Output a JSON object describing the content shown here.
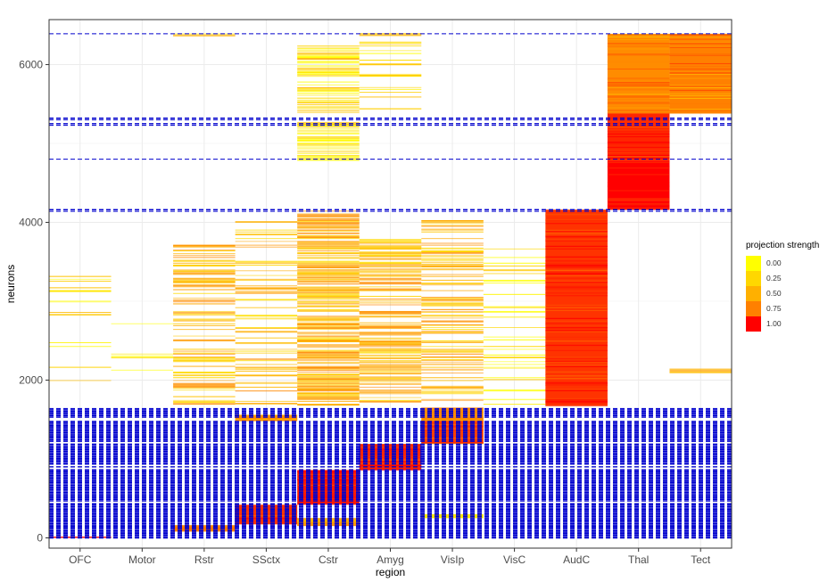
{
  "chart_data": {
    "type": "heatmap",
    "title": "",
    "xlabel": "region",
    "ylabel": "neurons",
    "categories": [
      "OFC",
      "Motor",
      "Rstr",
      "SSctx",
      "Cstr",
      "Amyg",
      "VisIp",
      "VisC",
      "AudC",
      "Thal",
      "Tect"
    ],
    "ylim": [
      -130,
      6570
    ],
    "yticks": [
      0,
      2000,
      4000,
      6000
    ],
    "grid": true,
    "legend": {
      "title": "projection strength",
      "position": "right",
      "labels": [
        "0.00",
        "0.25",
        "0.50",
        "0.75",
        "1.00"
      ],
      "colors": [
        "#ffff00",
        "#ffd700",
        "#ffb000",
        "#ff8000",
        "#ff0000"
      ]
    },
    "color_scale": {
      "low": "#ffff00",
      "high": "#ff0000",
      "min": 0,
      "max": 1
    },
    "blocks": [
      {
        "region": "OFC",
        "y0": 0,
        "y1": 15,
        "strength": 1.0
      },
      {
        "region": "Rstr",
        "y0": 80,
        "y1": 160,
        "strength": 0.5
      },
      {
        "region": "SSctx",
        "y0": 180,
        "y1": 420,
        "strength": 0.8
      },
      {
        "region": "Cstr",
        "y0": 420,
        "y1": 860,
        "strength": 0.9
      },
      {
        "region": "Cstr",
        "y0": 150,
        "y1": 250,
        "strength": 0.3
      },
      {
        "region": "Amyg",
        "y0": 860,
        "y1": 1190,
        "strength": 0.85
      },
      {
        "region": "VisIp",
        "y0": 1190,
        "y1": 1490,
        "strength": 0.75
      },
      {
        "region": "VisIp",
        "y0": 1490,
        "y1": 1650,
        "strength": 0.45
      },
      {
        "region": "VisIp",
        "y0": 250,
        "y1": 300,
        "strength": 0.1
      },
      {
        "region": "SSctx",
        "y0": 1480,
        "y1": 1560,
        "strength": 0.45
      },
      {
        "region": "AudC",
        "y0": 1670,
        "y1": 4160,
        "strength": 0.8
      },
      {
        "region": "Thal",
        "y0": 4160,
        "y1": 4780,
        "strength": 1.0
      },
      {
        "region": "Thal",
        "y0": 4780,
        "y1": 5380,
        "strength": 0.85
      },
      {
        "region": "Thal",
        "y0": 5380,
        "y1": 6390,
        "strength": 0.45
      },
      {
        "region": "Tect",
        "y0": 5380,
        "y1": 6390,
        "strength": 0.5
      }
    ],
    "sparse_lines": [
      {
        "region": "OFC",
        "y0": 2000,
        "y1": 3700,
        "density": 0.12,
        "strength": 0.1
      },
      {
        "region": "Motor",
        "y0": 2000,
        "y1": 3400,
        "density": 0.06,
        "strength": 0.05
      },
      {
        "region": "Rstr",
        "y0": 1700,
        "y1": 3750,
        "density": 0.45,
        "strength": 0.3
      },
      {
        "region": "Rstr",
        "y0": 6370,
        "y1": 6400,
        "density": 1.0,
        "strength": 0.3
      },
      {
        "region": "SSctx",
        "y0": 1700,
        "y1": 4030,
        "density": 0.3,
        "strength": 0.3
      },
      {
        "region": "Cstr",
        "y0": 1700,
        "y1": 4160,
        "density": 0.75,
        "strength": 0.3
      },
      {
        "region": "Cstr",
        "y0": 4780,
        "y1": 5300,
        "density": 0.7,
        "strength": 0.1
      },
      {
        "region": "Cstr",
        "y0": 5400,
        "y1": 6250,
        "density": 0.6,
        "strength": 0.15
      },
      {
        "region": "Amyg",
        "y0": 1700,
        "y1": 3800,
        "density": 0.6,
        "strength": 0.3
      },
      {
        "region": "Amyg",
        "y0": 5450,
        "y1": 6400,
        "density": 0.2,
        "strength": 0.15
      },
      {
        "region": "VisIp",
        "y0": 1700,
        "y1": 4030,
        "density": 0.4,
        "strength": 0.3
      },
      {
        "region": "VisC",
        "y0": 1700,
        "y1": 3700,
        "density": 0.2,
        "strength": 0.05
      },
      {
        "region": "Tect",
        "y0": 2100,
        "y1": 2150,
        "density": 1.0,
        "strength": 0.3
      }
    ],
    "separators": {
      "color": "#0000cd",
      "dense_ranges": [
        [
          0,
          1650
        ]
      ],
      "single_y": [
        4140,
        4160,
        4800,
        5230,
        5300,
        6390
      ],
      "gaps": [
        [
          420,
          460
        ],
        [
          880,
          930
        ],
        [
          1190,
          1230
        ],
        [
          1480,
          1520
        ]
      ]
    }
  }
}
